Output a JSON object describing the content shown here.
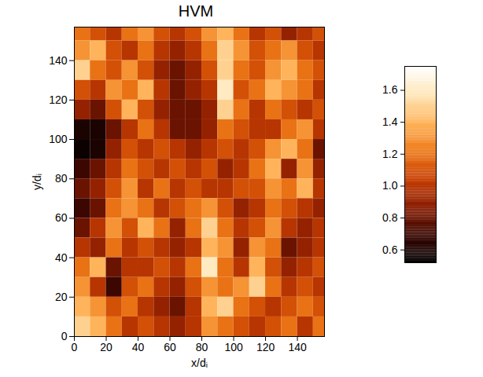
{
  "chart_data": {
    "type": "heatmap",
    "title": "HVM",
    "x_label": "x/dᵢ",
    "y_label": "y/dᵢ",
    "xlim": [
      0,
      157
    ],
    "ylim": [
      0,
      157
    ],
    "xticks": [
      0,
      20,
      40,
      60,
      80,
      100,
      120,
      140
    ],
    "yticks": [
      0,
      20,
      40,
      60,
      80,
      100,
      120,
      140
    ],
    "x": [
      5,
      15,
      25,
      35,
      45,
      55,
      65,
      75,
      85,
      95,
      105,
      115,
      125,
      135,
      145,
      155
    ],
    "y": [
      155,
      145,
      135,
      125,
      115,
      105,
      95,
      85,
      75,
      65,
      55,
      45,
      35,
      25,
      15,
      5
    ],
    "values": [
      [
        1.2,
        1.1,
        1.0,
        1.2,
        1.3,
        1.1,
        1.0,
        1.1,
        1.3,
        1.4,
        1.2,
        1.0,
        1.1,
        0.9,
        1.0,
        1.1
      ],
      [
        1.3,
        1.4,
        1.1,
        1.0,
        1.2,
        1.0,
        0.9,
        1.0,
        1.2,
        1.5,
        1.3,
        1.1,
        1.2,
        1.3,
        1.1,
        1.0
      ],
      [
        1.5,
        1.2,
        1.1,
        1.3,
        1.1,
        0.9,
        0.8,
        0.9,
        1.1,
        1.5,
        1.2,
        1.1,
        1.3,
        1.4,
        1.2,
        1.1
      ],
      [
        1.1,
        1.0,
        1.3,
        1.2,
        1.4,
        1.0,
        0.8,
        0.9,
        1.0,
        1.6,
        1.1,
        1.2,
        1.4,
        1.3,
        1.2,
        1.0
      ],
      [
        0.9,
        0.8,
        1.1,
        1.4,
        1.1,
        0.9,
        0.8,
        0.8,
        0.9,
        1.5,
        1.2,
        1.0,
        1.2,
        1.1,
        1.0,
        1.1
      ],
      [
        0.6,
        0.6,
        0.8,
        1.0,
        1.2,
        1.0,
        0.8,
        0.8,
        0.9,
        1.2,
        1.1,
        1.0,
        1.0,
        1.2,
        1.3,
        1.0
      ],
      [
        0.55,
        0.6,
        0.9,
        1.1,
        1.0,
        1.1,
        1.0,
        0.9,
        1.0,
        1.1,
        1.0,
        1.1,
        1.3,
        1.4,
        1.2,
        0.8
      ],
      [
        0.7,
        0.8,
        1.0,
        1.2,
        1.1,
        1.0,
        1.1,
        1.0,
        1.1,
        0.9,
        1.0,
        1.2,
        1.4,
        0.9,
        1.3,
        0.9
      ],
      [
        0.8,
        0.9,
        1.1,
        1.3,
        1.0,
        1.2,
        1.0,
        1.1,
        1.0,
        1.0,
        1.1,
        1.1,
        1.3,
        1.2,
        1.4,
        1.0
      ],
      [
        0.7,
        0.8,
        1.2,
        1.3,
        1.2,
        1.0,
        1.1,
        1.2,
        1.3,
        1.1,
        0.9,
        1.0,
        1.2,
        1.1,
        1.0,
        0.9
      ],
      [
        0.8,
        1.0,
        1.3,
        1.1,
        1.4,
        1.2,
        0.9,
        1.2,
        1.5,
        1.2,
        1.0,
        1.1,
        1.3,
        1.0,
        0.9,
        1.0
      ],
      [
        1.0,
        0.9,
        1.2,
        1.0,
        1.1,
        1.0,
        0.9,
        1.0,
        1.4,
        1.3,
        0.9,
        1.3,
        1.2,
        0.8,
        0.9,
        1.0
      ],
      [
        1.2,
        1.4,
        0.8,
        1.0,
        1.0,
        1.1,
        1.0,
        1.2,
        1.6,
        1.2,
        1.0,
        1.4,
        1.1,
        0.9,
        1.0,
        1.1
      ],
      [
        1.3,
        1.0,
        0.7,
        1.1,
        1.2,
        1.0,
        0.9,
        1.1,
        1.3,
        1.2,
        1.3,
        1.5,
        1.2,
        1.0,
        1.1,
        1.0
      ],
      [
        1.4,
        1.3,
        1.1,
        1.2,
        1.0,
        0.9,
        0.8,
        1.0,
        1.4,
        1.5,
        1.2,
        1.1,
        1.0,
        1.1,
        1.2,
        1.1
      ],
      [
        1.5,
        1.4,
        1.2,
        1.0,
        1.1,
        1.0,
        0.9,
        1.0,
        1.3,
        1.2,
        1.1,
        1.0,
        1.1,
        1.2,
        1.0,
        1.2
      ]
    ],
    "colorbar": {
      "range": [
        0.52,
        1.75
      ],
      "ticks": [
        0.6,
        0.8,
        {
          "value": 1,
          "label": "1.0"
        },
        1.2,
        1.4,
        1.6
      ]
    }
  }
}
